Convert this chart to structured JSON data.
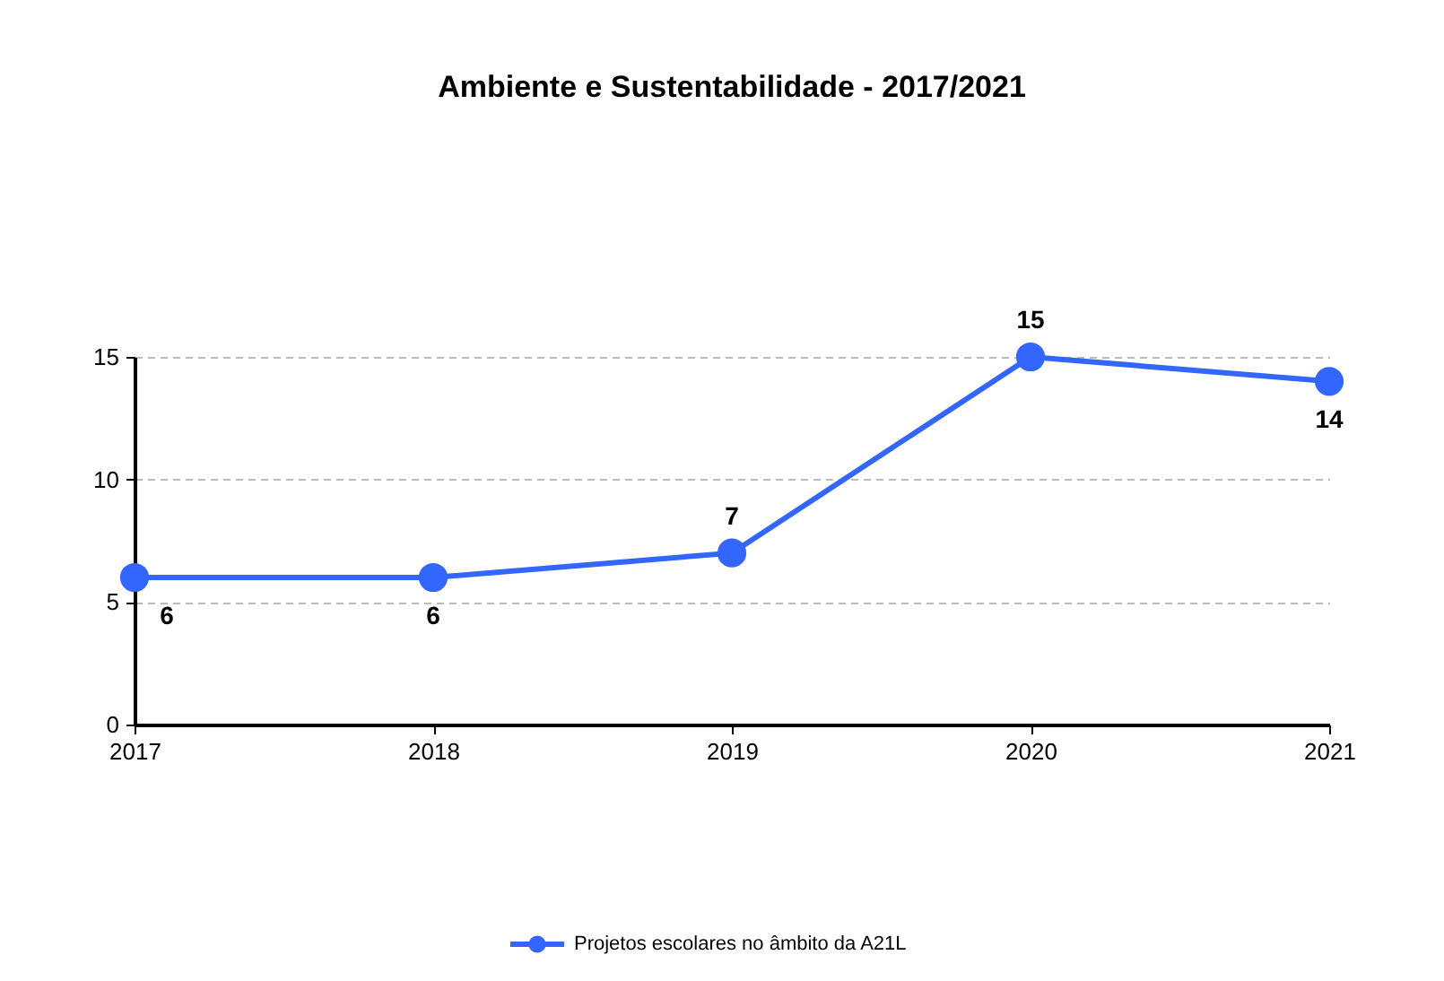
{
  "chart_data": {
    "type": "line",
    "title": "Ambiente e Sustentabilidade - 2017/2021",
    "categories": [
      "2017",
      "2018",
      "2019",
      "2020",
      "2021"
    ],
    "series": [
      {
        "name": "Projetos escolares no âmbito da A21L",
        "color": "#3366ff",
        "values": [
          6,
          6,
          7,
          15,
          14
        ]
      }
    ],
    "ylim": [
      0,
      15
    ],
    "yticks": [
      0,
      5,
      10,
      15
    ],
    "grid": "y",
    "legend": "bottom",
    "marker": "circle",
    "line_style": "solid",
    "data_labels": true
  }
}
